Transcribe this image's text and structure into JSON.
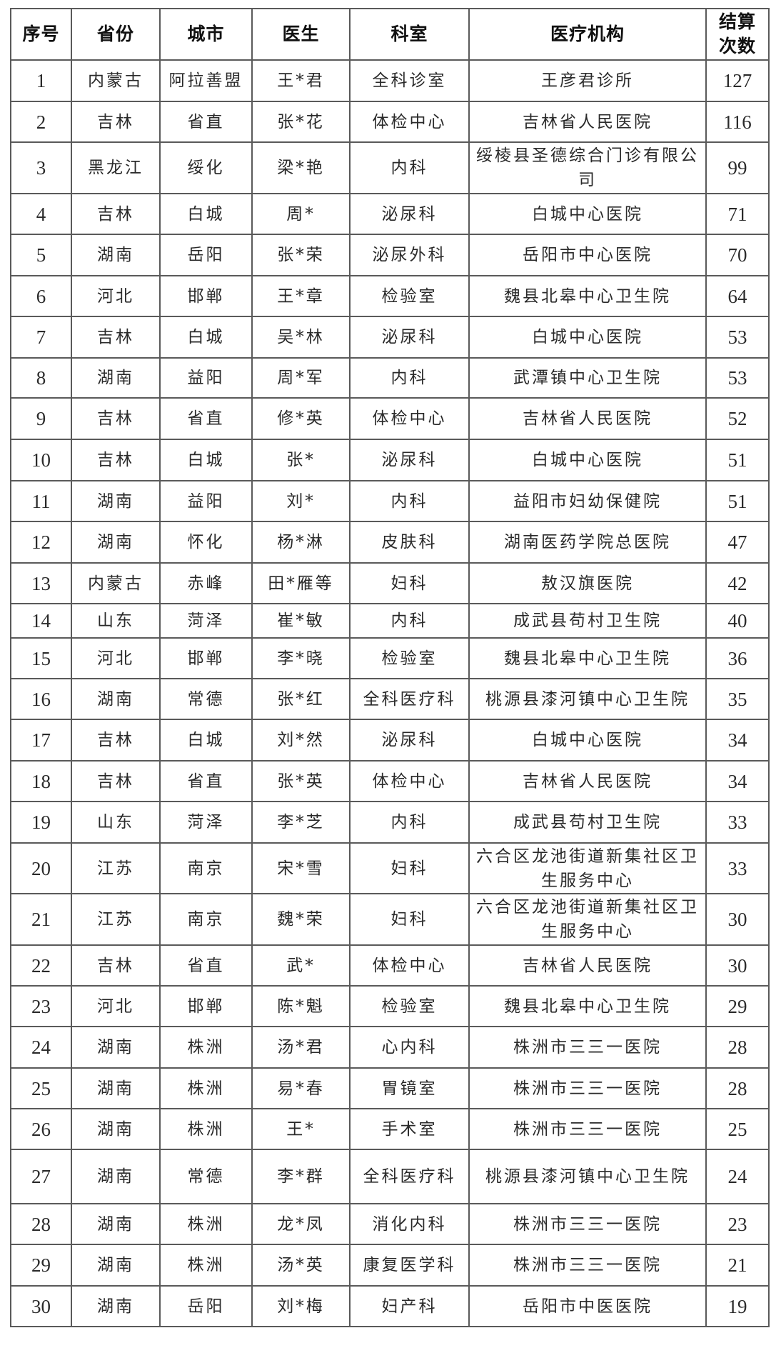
{
  "table": {
    "headers": [
      "序号",
      "省份",
      "城市",
      "医生",
      "科室",
      "医疗机构",
      "结算次数"
    ],
    "rows": [
      [
        "1",
        "内蒙古",
        "阿拉善盟",
        "王*君",
        "全科诊室",
        "王彦君诊所",
        "127"
      ],
      [
        "2",
        "吉林",
        "省直",
        "张*花",
        "体检中心",
        "吉林省人民医院",
        "116"
      ],
      [
        "3",
        "黑龙江",
        "绥化",
        "梁*艳",
        "内科",
        "绥棱县圣德综合门诊有限公司",
        "99"
      ],
      [
        "4",
        "吉林",
        "白城",
        "周*",
        "泌尿科",
        "白城中心医院",
        "71"
      ],
      [
        "5",
        "湖南",
        "岳阳",
        "张*荣",
        "泌尿外科",
        "岳阳市中心医院",
        "70"
      ],
      [
        "6",
        "河北",
        "邯郸",
        "王*章",
        "检验室",
        "魏县北皋中心卫生院",
        "64"
      ],
      [
        "7",
        "吉林",
        "白城",
        "吴*林",
        "泌尿科",
        "白城中心医院",
        "53"
      ],
      [
        "8",
        "湖南",
        "益阳",
        "周*军",
        "内科",
        "武潭镇中心卫生院",
        "53"
      ],
      [
        "9",
        "吉林",
        "省直",
        "修*英",
        "体检中心",
        "吉林省人民医院",
        "52"
      ],
      [
        "10",
        "吉林",
        "白城",
        "张*",
        "泌尿科",
        "白城中心医院",
        "51"
      ],
      [
        "11",
        "湖南",
        "益阳",
        "刘*",
        "内科",
        "益阳市妇幼保健院",
        "51"
      ],
      [
        "12",
        "湖南",
        "怀化",
        "杨*淋",
        "皮肤科",
        "湖南医药学院总医院",
        "47"
      ],
      [
        "13",
        "内蒙古",
        "赤峰",
        "田*雁等",
        "妇科",
        "敖汉旗医院",
        "42"
      ],
      [
        "14",
        "山东",
        "菏泽",
        "崔*敏",
        "内科",
        "成武县苟村卫生院",
        "40"
      ],
      [
        "15",
        "河北",
        "邯郸",
        "李*晓",
        "检验室",
        "魏县北皋中心卫生院",
        "36"
      ],
      [
        "16",
        "湖南",
        "常德",
        "张*红",
        "全科医疗科",
        "桃源县漆河镇中心卫生院",
        "35"
      ],
      [
        "17",
        "吉林",
        "白城",
        "刘*然",
        "泌尿科",
        "白城中心医院",
        "34"
      ],
      [
        "18",
        "吉林",
        "省直",
        "张*英",
        "体检中心",
        "吉林省人民医院",
        "34"
      ],
      [
        "19",
        "山东",
        "菏泽",
        "李*芝",
        "内科",
        "成武县苟村卫生院",
        "33"
      ],
      [
        "20",
        "江苏",
        "南京",
        "宋*雪",
        "妇科",
        "六合区龙池街道新集社区卫生服务中心",
        "33"
      ],
      [
        "21",
        "江苏",
        "南京",
        "魏*荣",
        "妇科",
        "六合区龙池街道新集社区卫生服务中心",
        "30"
      ],
      [
        "22",
        "吉林",
        "省直",
        "武*",
        "体检中心",
        "吉林省人民医院",
        "30"
      ],
      [
        "23",
        "河北",
        "邯郸",
        "陈*魁",
        "检验室",
        "魏县北皋中心卫生院",
        "29"
      ],
      [
        "24",
        "湖南",
        "株洲",
        "汤*君",
        "心内科",
        "株洲市三三一医院",
        "28"
      ],
      [
        "25",
        "湖南",
        "株洲",
        "易*春",
        "胃镜室",
        "株洲市三三一医院",
        "28"
      ],
      [
        "26",
        "湖南",
        "株洲",
        "王*",
        "手术室",
        "株洲市三三一医院",
        "25"
      ],
      [
        "27",
        "湖南",
        "常德",
        "李*群",
        "全科医疗科",
        "桃源县漆河镇中心卫生院",
        "24"
      ],
      [
        "28",
        "湖南",
        "株洲",
        "龙*凤",
        "消化内科",
        "株洲市三三一医院",
        "23"
      ],
      [
        "29",
        "湖南",
        "株洲",
        "汤*英",
        "康复医学科",
        "株洲市三三一医院",
        "21"
      ],
      [
        "30",
        "湖南",
        "岳阳",
        "刘*梅",
        "妇产科",
        "岳阳市中医医院",
        "19"
      ]
    ]
  }
}
